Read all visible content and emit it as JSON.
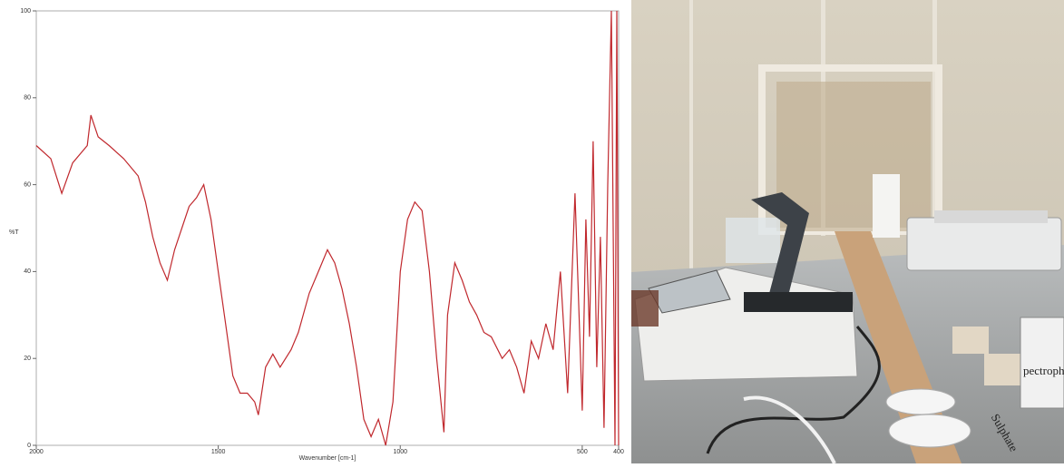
{
  "chart_data": {
    "type": "line",
    "y_label": "%T",
    "x_label": "Wavenumber [cm-1]",
    "x": [
      2000,
      1960,
      1930,
      1900,
      1860,
      1850,
      1830,
      1800,
      1760,
      1720,
      1700,
      1680,
      1660,
      1640,
      1620,
      1600,
      1580,
      1560,
      1540,
      1520,
      1500,
      1480,
      1460,
      1440,
      1420,
      1400,
      1390,
      1370,
      1350,
      1330,
      1300,
      1280,
      1250,
      1220,
      1200,
      1180,
      1160,
      1140,
      1120,
      1100,
      1080,
      1060,
      1040,
      1020,
      1000,
      980,
      960,
      940,
      920,
      900,
      880,
      870,
      850,
      830,
      810,
      790,
      770,
      750,
      720,
      700,
      680,
      660,
      640,
      620,
      600,
      580,
      560,
      540,
      520,
      500,
      490,
      480,
      470,
      460,
      450,
      440,
      430,
      420,
      410,
      405,
      400
    ],
    "values": [
      69,
      66,
      58,
      65,
      69,
      76,
      71,
      69,
      66,
      62,
      56,
      48,
      42,
      38,
      45,
      50,
      55,
      57,
      60,
      52,
      40,
      28,
      16,
      12,
      12,
      10,
      7,
      18,
      21,
      18,
      22,
      26,
      35,
      41,
      45,
      42,
      36,
      28,
      18,
      6,
      2,
      6,
      0,
      10,
      40,
      52,
      56,
      54,
      40,
      20,
      3,
      30,
      42,
      38,
      33,
      30,
      26,
      25,
      20,
      22,
      18,
      12,
      24,
      20,
      28,
      22,
      40,
      12,
      58,
      8,
      52,
      25,
      70,
      18,
      48,
      4,
      60,
      100,
      0,
      100,
      0
    ],
    "color": "#c0282d",
    "xlim": [
      2000,
      400
    ],
    "xticks": [
      2000,
      1500,
      1000,
      500,
      400
    ],
    "ylim": [
      0,
      100
    ],
    "yticks": [
      0,
      20,
      40,
      60,
      80,
      100
    ]
  },
  "photo": {
    "labels": [
      "Sulphate",
      "pectroph"
    ]
  }
}
